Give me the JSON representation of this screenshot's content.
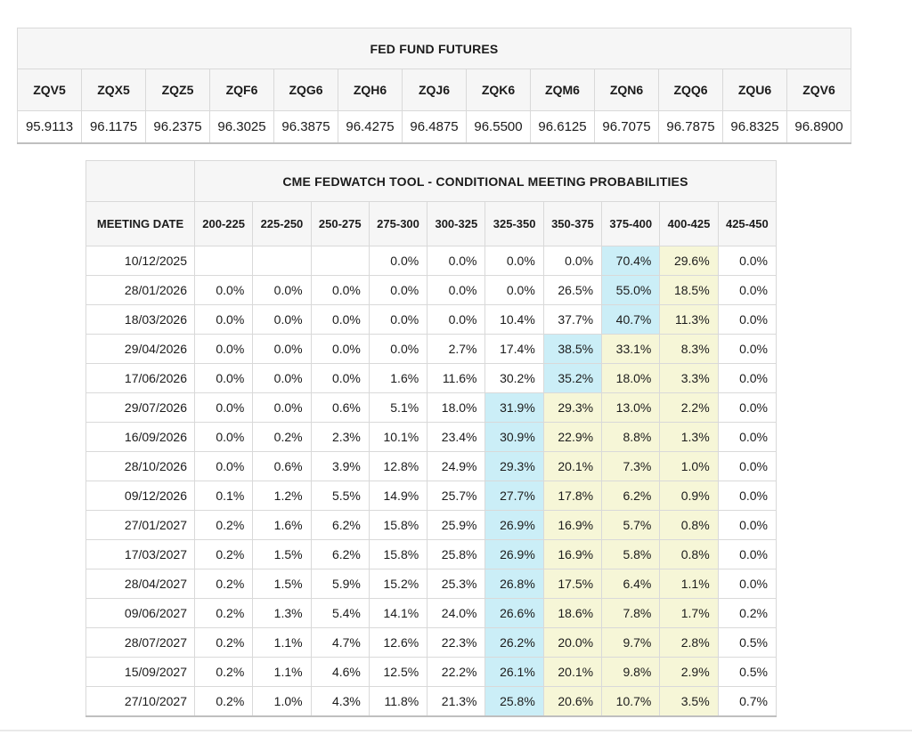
{
  "futures": {
    "title": "FED FUND FUTURES",
    "columns": [
      "ZQV5",
      "ZQX5",
      "ZQZ5",
      "ZQF6",
      "ZQG6",
      "ZQH6",
      "ZQJ6",
      "ZQK6",
      "ZQM6",
      "ZQN6",
      "ZQQ6",
      "ZQU6",
      "ZQV6"
    ],
    "prices": [
      "95.9113",
      "96.1175",
      "96.2375",
      "96.3025",
      "96.3875",
      "96.4275",
      "96.4875",
      "96.5500",
      "96.6125",
      "96.7075",
      "96.7875",
      "96.8325",
      "96.8900"
    ]
  },
  "fedwatch": {
    "title": "CME FEDWATCH TOOL - CONDITIONAL MEETING PROBABILITIES",
    "date_header": "MEETING DATE",
    "rate_columns": [
      "200-225",
      "225-250",
      "250-275",
      "275-300",
      "300-325",
      "325-350",
      "350-375",
      "375-400",
      "400-425",
      "425-450"
    ],
    "rows": [
      {
        "date": "10/12/2025",
        "values": [
          "",
          "",
          "",
          "0.0%",
          "0.0%",
          "0.0%",
          "0.0%",
          "70.4%",
          "29.6%",
          "0.0%"
        ],
        "highlight": [
          "",
          "",
          "",
          "",
          "",
          "",
          "",
          "b",
          "y",
          ""
        ]
      },
      {
        "date": "28/01/2026",
        "values": [
          "0.0%",
          "0.0%",
          "0.0%",
          "0.0%",
          "0.0%",
          "0.0%",
          "26.5%",
          "55.0%",
          "18.5%",
          "0.0%"
        ],
        "highlight": [
          "",
          "",
          "",
          "",
          "",
          "",
          "",
          "b",
          "y",
          ""
        ]
      },
      {
        "date": "18/03/2026",
        "values": [
          "0.0%",
          "0.0%",
          "0.0%",
          "0.0%",
          "0.0%",
          "10.4%",
          "37.7%",
          "40.7%",
          "11.3%",
          "0.0%"
        ],
        "highlight": [
          "",
          "",
          "",
          "",
          "",
          "",
          "",
          "b",
          "y",
          ""
        ]
      },
      {
        "date": "29/04/2026",
        "values": [
          "0.0%",
          "0.0%",
          "0.0%",
          "0.0%",
          "2.7%",
          "17.4%",
          "38.5%",
          "33.1%",
          "8.3%",
          "0.0%"
        ],
        "highlight": [
          "",
          "",
          "",
          "",
          "",
          "",
          "b",
          "y",
          "y",
          ""
        ]
      },
      {
        "date": "17/06/2026",
        "values": [
          "0.0%",
          "0.0%",
          "0.0%",
          "1.6%",
          "11.6%",
          "30.2%",
          "35.2%",
          "18.0%",
          "3.3%",
          "0.0%"
        ],
        "highlight": [
          "",
          "",
          "",
          "",
          "",
          "",
          "b",
          "y",
          "y",
          ""
        ]
      },
      {
        "date": "29/07/2026",
        "values": [
          "0.0%",
          "0.0%",
          "0.6%",
          "5.1%",
          "18.0%",
          "31.9%",
          "29.3%",
          "13.0%",
          "2.2%",
          "0.0%"
        ],
        "highlight": [
          "",
          "",
          "",
          "",
          "",
          "b",
          "y",
          "y",
          "y",
          ""
        ]
      },
      {
        "date": "16/09/2026",
        "values": [
          "0.0%",
          "0.2%",
          "2.3%",
          "10.1%",
          "23.4%",
          "30.9%",
          "22.9%",
          "8.8%",
          "1.3%",
          "0.0%"
        ],
        "highlight": [
          "",
          "",
          "",
          "",
          "",
          "b",
          "y",
          "y",
          "y",
          ""
        ]
      },
      {
        "date": "28/10/2026",
        "values": [
          "0.0%",
          "0.6%",
          "3.9%",
          "12.8%",
          "24.9%",
          "29.3%",
          "20.1%",
          "7.3%",
          "1.0%",
          "0.0%"
        ],
        "highlight": [
          "",
          "",
          "",
          "",
          "",
          "b",
          "y",
          "y",
          "y",
          ""
        ]
      },
      {
        "date": "09/12/2026",
        "values": [
          "0.1%",
          "1.2%",
          "5.5%",
          "14.9%",
          "25.7%",
          "27.7%",
          "17.8%",
          "6.2%",
          "0.9%",
          "0.0%"
        ],
        "highlight": [
          "",
          "",
          "",
          "",
          "",
          "b",
          "y",
          "y",
          "y",
          ""
        ]
      },
      {
        "date": "27/01/2027",
        "values": [
          "0.2%",
          "1.6%",
          "6.2%",
          "15.8%",
          "25.9%",
          "26.9%",
          "16.9%",
          "5.7%",
          "0.8%",
          "0.0%"
        ],
        "highlight": [
          "",
          "",
          "",
          "",
          "",
          "b",
          "y",
          "y",
          "y",
          ""
        ]
      },
      {
        "date": "17/03/2027",
        "values": [
          "0.2%",
          "1.5%",
          "6.2%",
          "15.8%",
          "25.8%",
          "26.9%",
          "16.9%",
          "5.8%",
          "0.8%",
          "0.0%"
        ],
        "highlight": [
          "",
          "",
          "",
          "",
          "",
          "b",
          "y",
          "y",
          "y",
          ""
        ]
      },
      {
        "date": "28/04/2027",
        "values": [
          "0.2%",
          "1.5%",
          "5.9%",
          "15.2%",
          "25.3%",
          "26.8%",
          "17.5%",
          "6.4%",
          "1.1%",
          "0.0%"
        ],
        "highlight": [
          "",
          "",
          "",
          "",
          "",
          "b",
          "y",
          "y",
          "y",
          ""
        ]
      },
      {
        "date": "09/06/2027",
        "values": [
          "0.2%",
          "1.3%",
          "5.4%",
          "14.1%",
          "24.0%",
          "26.6%",
          "18.6%",
          "7.8%",
          "1.7%",
          "0.2%"
        ],
        "highlight": [
          "",
          "",
          "",
          "",
          "",
          "b",
          "y",
          "y",
          "y",
          ""
        ]
      },
      {
        "date": "28/07/2027",
        "values": [
          "0.2%",
          "1.1%",
          "4.7%",
          "12.6%",
          "22.3%",
          "26.2%",
          "20.0%",
          "9.7%",
          "2.8%",
          "0.5%"
        ],
        "highlight": [
          "",
          "",
          "",
          "",
          "",
          "b",
          "y",
          "y",
          "y",
          ""
        ]
      },
      {
        "date": "15/09/2027",
        "values": [
          "0.2%",
          "1.1%",
          "4.6%",
          "12.5%",
          "22.2%",
          "26.1%",
          "20.1%",
          "9.8%",
          "2.9%",
          "0.5%"
        ],
        "highlight": [
          "",
          "",
          "",
          "",
          "",
          "b",
          "y",
          "y",
          "y",
          ""
        ]
      },
      {
        "date": "27/10/2027",
        "values": [
          "0.2%",
          "1.0%",
          "4.3%",
          "11.8%",
          "21.3%",
          "25.8%",
          "20.6%",
          "10.7%",
          "3.5%",
          "0.7%"
        ],
        "highlight": [
          "",
          "",
          "",
          "",
          "",
          "b",
          "y",
          "y",
          "y",
          ""
        ]
      }
    ]
  },
  "colors": {
    "highlight_blue": "#cbeef7",
    "highlight_yellow": "#f6f6d7",
    "header_bg": "#f6f6f6",
    "border": "#d9d9d9",
    "outer_border": "#c9c9c9"
  }
}
